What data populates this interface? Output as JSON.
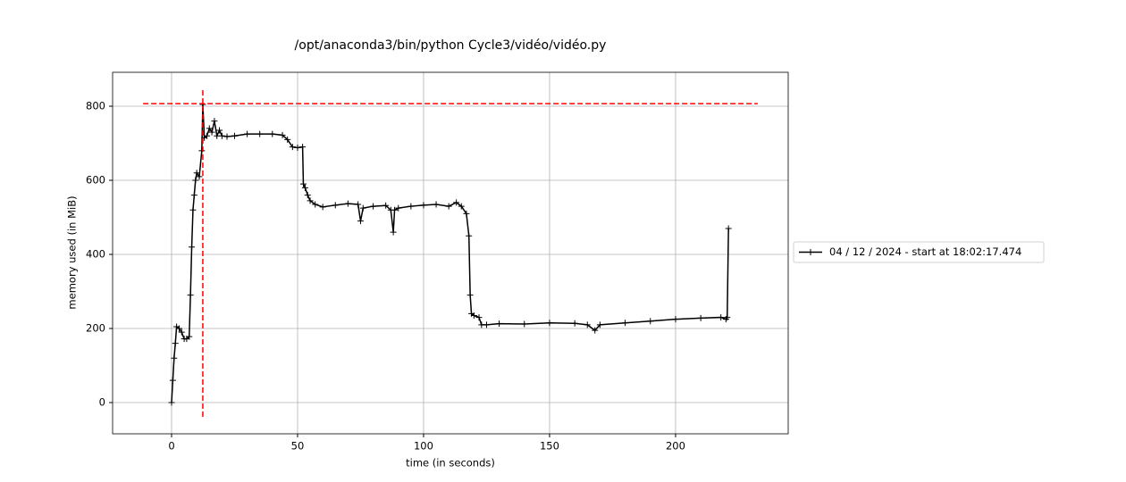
{
  "chart_data": {
    "type": "line",
    "title": "/opt/anaconda3/bin/python Cycle3/vidéo/vidéo.py",
    "xlabel": "time (in seconds)",
    "ylabel": "memory used (in MiB)",
    "xlim": [
      -23.4,
      244.7
    ],
    "ylim": [
      -84.3,
      891.6
    ],
    "xticks": [
      0,
      50,
      100,
      150,
      200
    ],
    "yticks": [
      0,
      200,
      400,
      600,
      800
    ],
    "grid": true,
    "legend_loc": "right",
    "marker": "+",
    "series": [
      {
        "name": "04 / 12 / 2024 - start at 18:02:17.474",
        "color": "#000000",
        "x": [
          0,
          0.5,
          1,
          1.5,
          2,
          3,
          4,
          5,
          6,
          7,
          7.5,
          8,
          8.5,
          9,
          9.5,
          10,
          11,
          12,
          12.4,
          13,
          14,
          15,
          16,
          17,
          18,
          19,
          20,
          22,
          25,
          30,
          35,
          40,
          44,
          46,
          48,
          50,
          52,
          52.3,
          53,
          54,
          55,
          57,
          60,
          65,
          70,
          74,
          75,
          76,
          80,
          85,
          87,
          88,
          88.5,
          90,
          95,
          100,
          105,
          110,
          113,
          115,
          117,
          118,
          118.5,
          119,
          120,
          122,
          123,
          125,
          130,
          140,
          150,
          160,
          165,
          168,
          170,
          180,
          190,
          200,
          210,
          218,
          220,
          220.5,
          221
        ],
        "values": [
          0,
          60,
          120,
          160,
          205,
          200,
          190,
          172,
          172,
          178,
          290,
          420,
          520,
          560,
          600,
          620,
          610,
          680,
          805,
          715,
          720,
          740,
          730,
          760,
          720,
          735,
          720,
          718,
          720,
          725,
          725,
          725,
          722,
          710,
          690,
          688,
          690,
          590,
          580,
          560,
          545,
          535,
          528,
          533,
          537,
          535,
          490,
          525,
          530,
          532,
          520,
          460,
          520,
          525,
          530,
          533,
          535,
          530,
          540,
          530,
          510,
          450,
          290,
          240,
          235,
          230,
          210,
          210,
          213,
          212,
          215,
          214,
          210,
          195,
          210,
          215,
          220,
          225,
          228,
          230,
          225,
          230,
          470
        ]
      }
    ],
    "max_memory_line": {
      "color": "#ff0000",
      "y": 807,
      "x_range": [
        -11.3,
        232.6
      ]
    },
    "max_time_line": {
      "color": "#ff0000",
      "x": 12.4,
      "y_range": [
        -38.6,
        845.8
      ]
    }
  }
}
